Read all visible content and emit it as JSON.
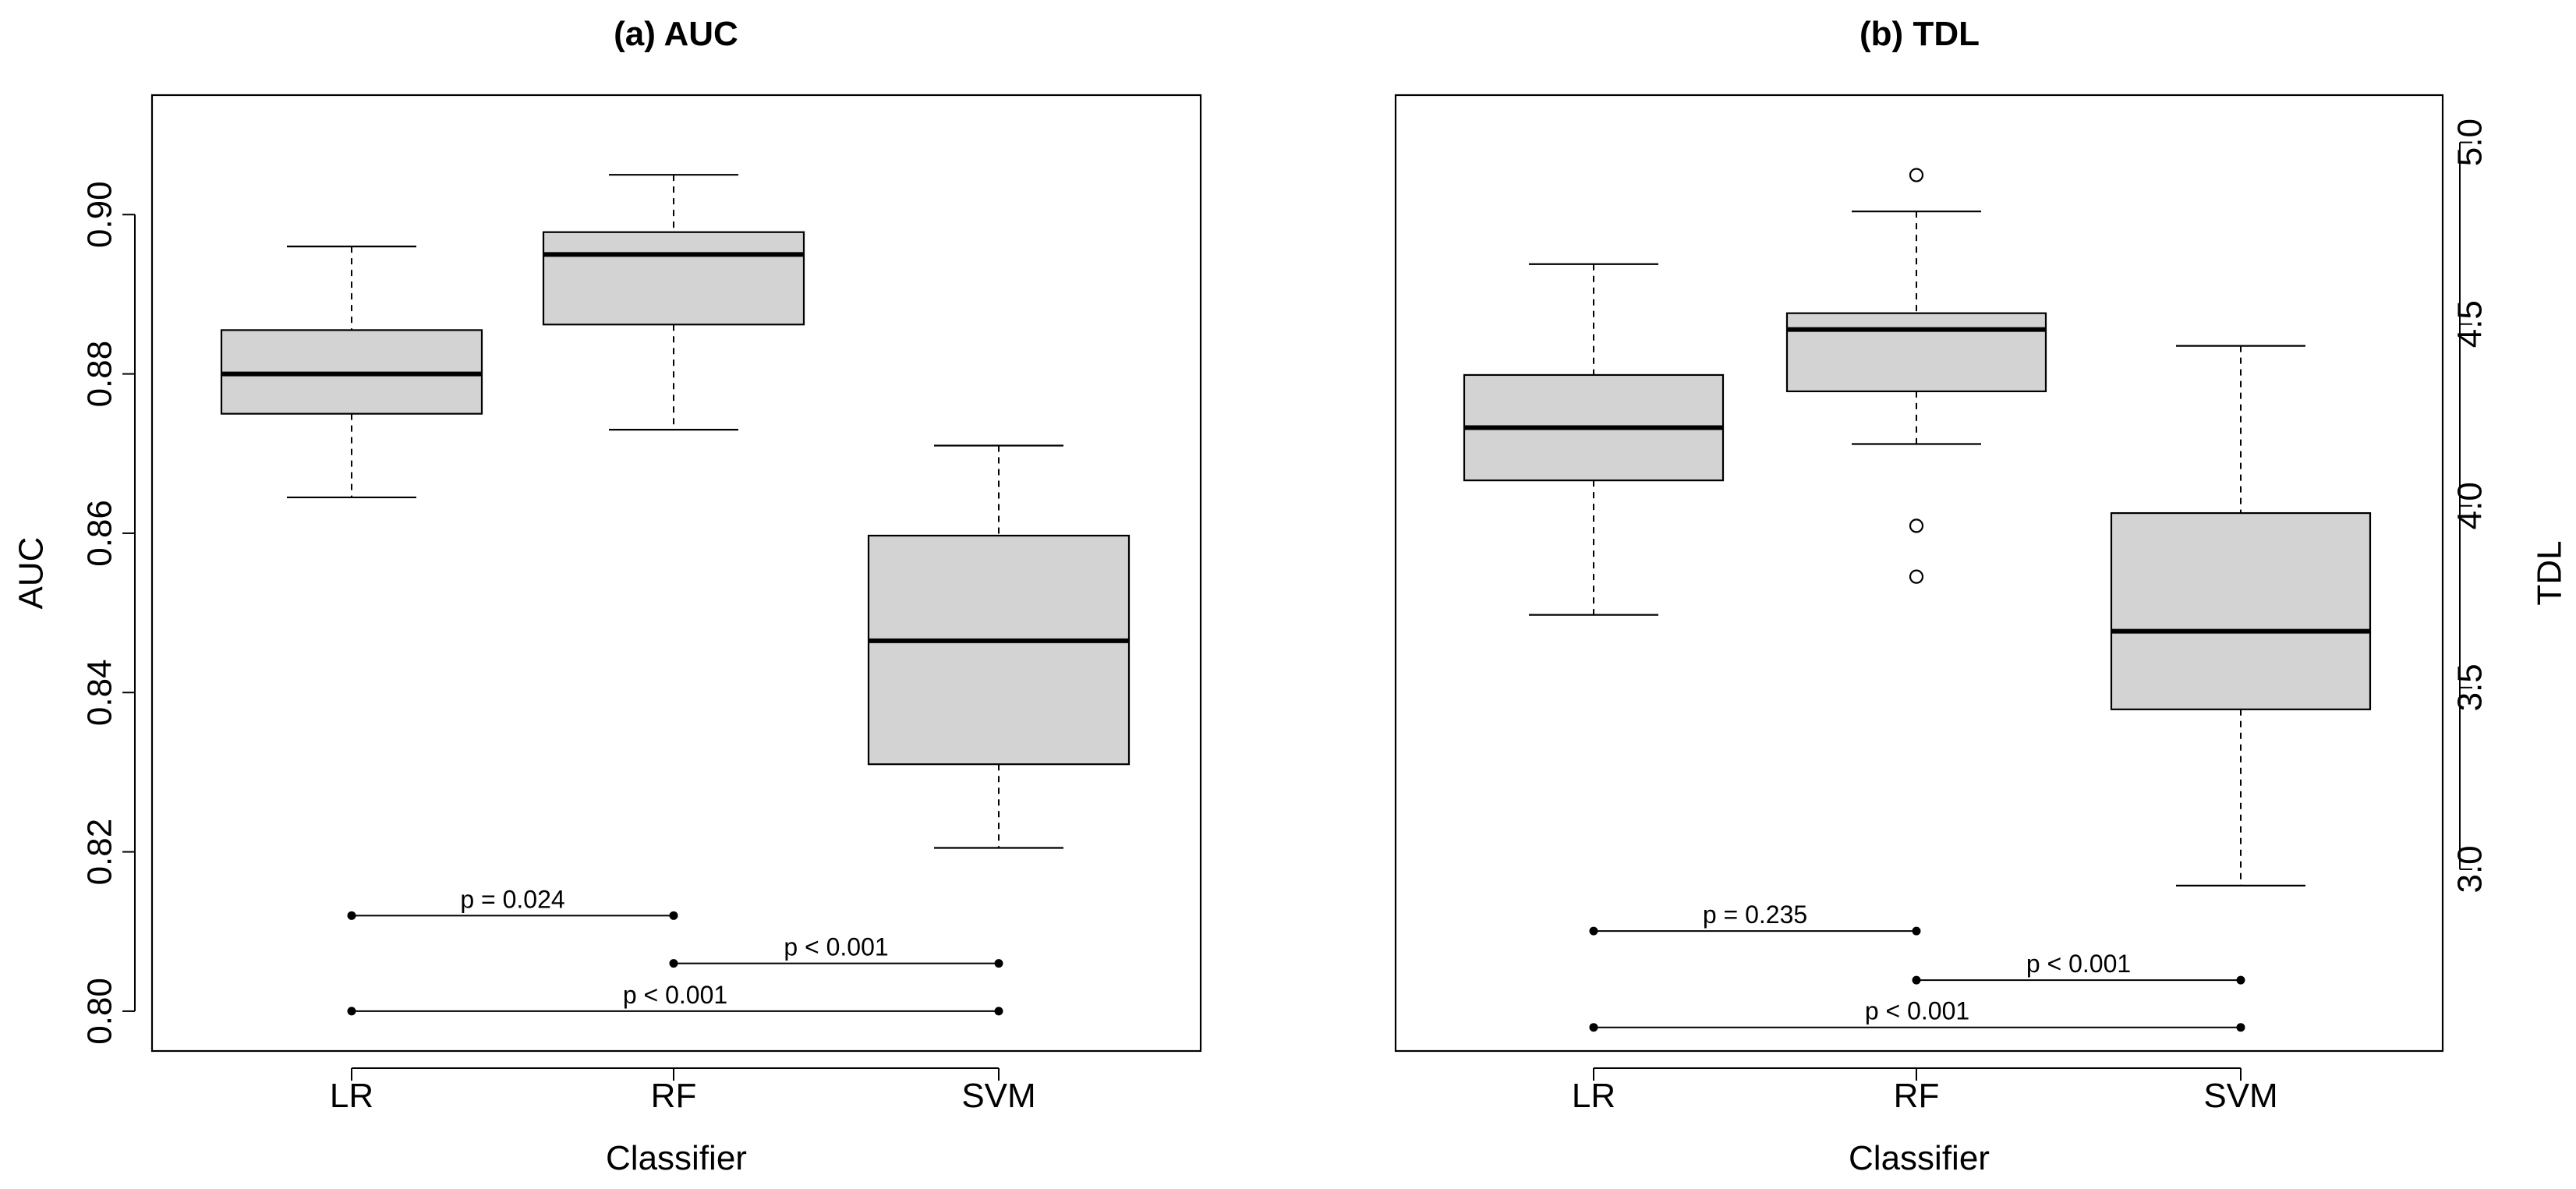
{
  "chart_data": [
    {
      "type": "boxplot",
      "title": "(a) AUC",
      "xlabel": "Classifier",
      "ylabel": "AUC",
      "ylim": [
        0.795,
        0.915
      ],
      "yticks": [
        0.8,
        0.82,
        0.84,
        0.86,
        0.88,
        0.9
      ],
      "ytick_labels": [
        "0.80",
        "0.82",
        "0.84",
        "0.86",
        "0.88",
        "0.90"
      ],
      "y_axis_side": "left",
      "categories": [
        "LR",
        "RF",
        "SVM"
      ],
      "boxes": [
        {
          "name": "LR",
          "whisker_low": 0.8645,
          "q1": 0.875,
          "median": 0.88,
          "q3": 0.8855,
          "whisker_high": 0.896,
          "outliers": []
        },
        {
          "name": "RF",
          "whisker_low": 0.873,
          "q1": 0.8862,
          "median": 0.895,
          "q3": 0.8978,
          "whisker_high": 0.905,
          "outliers": []
        },
        {
          "name": "SVM",
          "whisker_low": 0.8205,
          "q1": 0.831,
          "median": 0.8465,
          "q3": 0.8597,
          "whisker_high": 0.871,
          "outliers": []
        }
      ],
      "comparisons": [
        {
          "from": "LR",
          "to": "RF",
          "y": 0.812,
          "label": "p = 0.024"
        },
        {
          "from": "RF",
          "to": "SVM",
          "y": 0.806,
          "label": "p < 0.001"
        },
        {
          "from": "LR",
          "to": "SVM",
          "y": 0.8,
          "label": "p < 0.001"
        }
      ]
    },
    {
      "type": "boxplot",
      "title": "(b) TDL",
      "xlabel": "Classifier",
      "ylabel": "TDL",
      "ylim": [
        2.5,
        5.13
      ],
      "yticks": [
        3.0,
        3.5,
        4.0,
        4.5,
        5.0
      ],
      "ytick_labels": [
        "3.0",
        "3.5",
        "4.0",
        "4.5",
        "5.0"
      ],
      "y_axis_side": "right",
      "categories": [
        "LR",
        "RF",
        "SVM"
      ],
      "boxes": [
        {
          "name": "LR",
          "whisker_low": 3.7,
          "q1": 4.07,
          "median": 4.215,
          "q3": 4.36,
          "whisker_high": 4.665,
          "outliers": []
        },
        {
          "name": "RF",
          "whisker_low": 4.17,
          "q1": 4.315,
          "median": 4.485,
          "q3": 4.53,
          "whisker_high": 4.81,
          "outliers": [
            4.91,
            3.945,
            3.805
          ]
        },
        {
          "name": "SVM",
          "whisker_low": 2.955,
          "q1": 3.44,
          "median": 3.655,
          "q3": 3.98,
          "whisker_high": 4.44,
          "outliers": []
        }
      ],
      "comparisons": [
        {
          "from": "LR",
          "to": "RF",
          "y": 2.83,
          "label": "p = 0.235"
        },
        {
          "from": "RF",
          "to": "SVM",
          "y": 2.695,
          "label": "p < 0.001"
        },
        {
          "from": "LR",
          "to": "SVM",
          "y": 2.565,
          "label": "p < 0.001"
        }
      ]
    }
  ]
}
